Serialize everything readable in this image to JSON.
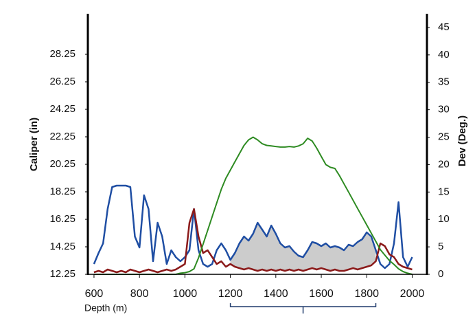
{
  "chart_data": {
    "type": "line",
    "xlabel": "Depth (m)",
    "ylabel": "Caliper (in)",
    "y2label": "Dev (Deg.)",
    "x": [
      600,
      620,
      640,
      660,
      680,
      700,
      720,
      740,
      760,
      780,
      800,
      820,
      840,
      860,
      880,
      900,
      920,
      940,
      960,
      980,
      1000,
      1020,
      1040,
      1060,
      1080,
      1100,
      1120,
      1140,
      1160,
      1180,
      1200,
      1220,
      1240,
      1260,
      1280,
      1300,
      1320,
      1340,
      1360,
      1380,
      1400,
      1420,
      1440,
      1460,
      1480,
      1500,
      1520,
      1540,
      1560,
      1580,
      1600,
      1620,
      1640,
      1660,
      1680,
      1700,
      1720,
      1740,
      1760,
      1780,
      1800,
      1820,
      1840,
      1860,
      1880,
      1900,
      1920,
      1940,
      1960,
      1980,
      2000
    ],
    "series": [
      {
        "color": "#1f4ea3",
        "values": [
          13.0,
          13.8,
          14.5,
          17.0,
          18.6,
          18.7,
          18.7,
          18.7,
          18.6,
          15.0,
          14.2,
          18.0,
          17.0,
          13.2,
          16.0,
          15.0,
          13.0,
          14.0,
          13.5,
          13.2,
          13.5,
          14.0,
          17.0,
          14.0,
          13.0,
          12.8,
          13.0,
          14.0,
          14.5,
          14.0,
          13.3,
          13.8,
          14.5,
          15.0,
          14.7,
          15.2,
          16.0,
          15.5,
          15.0,
          15.8,
          15.2,
          14.5,
          14.2,
          14.3,
          13.9,
          13.6,
          13.5,
          14.0,
          14.6,
          14.5,
          14.3,
          14.5,
          14.2,
          14.3,
          14.2,
          14.0,
          14.4,
          14.3,
          14.6,
          14.8,
          15.3,
          15.0,
          14.0,
          13.0,
          12.7,
          13.0,
          14.5,
          17.5,
          13.5,
          12.8,
          13.5
        ]
      },
      {
        "color": "#8b1a1a",
        "values": [
          12.4,
          12.5,
          12.4,
          12.6,
          12.5,
          12.4,
          12.5,
          12.4,
          12.6,
          12.5,
          12.4,
          12.5,
          12.6,
          12.5,
          12.4,
          12.5,
          12.6,
          12.5,
          12.6,
          12.8,
          13.0,
          16.0,
          17.0,
          15.0,
          13.8,
          14.0,
          13.5,
          13.0,
          13.2,
          12.8,
          13.0,
          12.8,
          12.7,
          12.6,
          12.7,
          12.6,
          12.5,
          12.6,
          12.5,
          12.6,
          12.5,
          12.6,
          12.5,
          12.6,
          12.5,
          12.6,
          12.5,
          12.6,
          12.7,
          12.6,
          12.7,
          12.6,
          12.5,
          12.6,
          12.5,
          12.5,
          12.6,
          12.7,
          12.6,
          12.7,
          12.8,
          12.9,
          13.2,
          14.5,
          14.3,
          13.7,
          13.5,
          13.0,
          12.8,
          12.7,
          12.6
        ]
      },
      {
        "color": "#2e8b22",
        "axis": "y2",
        "values": [
          0,
          0,
          0,
          0,
          0,
          0,
          0,
          0,
          0,
          0,
          0,
          0,
          0,
          0,
          0,
          0,
          0,
          0,
          0,
          0.2,
          0.3,
          0.5,
          1,
          3,
          5.5,
          8,
          10.5,
          13,
          15.5,
          17.5,
          19,
          20.5,
          22,
          23.5,
          24.5,
          25,
          24.5,
          23.8,
          23.5,
          23.4,
          23.3,
          23.2,
          23.2,
          23.3,
          23.2,
          23.4,
          23.8,
          24.8,
          24.3,
          23,
          21.5,
          20,
          19.5,
          19.3,
          18,
          16.5,
          15,
          13.5,
          12,
          10.5,
          9,
          7.5,
          6,
          4.5,
          3.5,
          2.5,
          1.8,
          1,
          0.5,
          0.2,
          0
        ]
      }
    ],
    "highlight_range": [
      1200,
      1840
    ],
    "highlight_color": "#cccccc",
    "xlim": [
      573,
      2065
    ],
    "xticks": [
      600,
      800,
      1000,
      1200,
      1400,
      1600,
      1800,
      2000
    ],
    "ylim": [
      12.25,
      31.2
    ],
    "yticks": [
      12.25,
      14.25,
      16.25,
      18.25,
      20.25,
      22.25,
      24.25,
      26.25,
      28.25
    ],
    "y2lim": [
      0,
      47.5
    ],
    "y2ticks": [
      0,
      5,
      10,
      15,
      20,
      25,
      30,
      35,
      40,
      45
    ]
  }
}
